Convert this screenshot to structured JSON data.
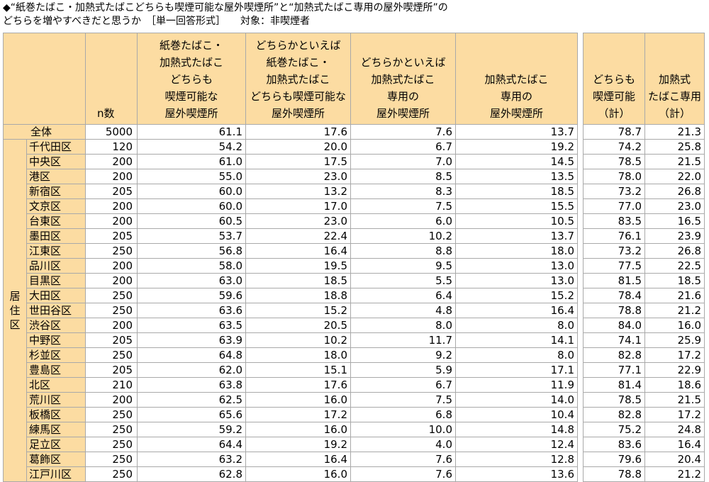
{
  "title": {
    "line1": "◆“紙巻たばこ・加熱式たばこどちらも喫煙可能な屋外喫煙所”と“加熱式たばこ専用の屋外喫煙所”の",
    "line2": "どちらを増やすべきだと思うか　［単一回答形式］　　対象：非喫煙者"
  },
  "headers": {
    "n": "n数",
    "col1": [
      "紙巻たばこ・",
      "加熱式たばこ",
      "どちらも",
      "喫煙可能な",
      "屋外喫煙所"
    ],
    "col2": [
      "どちらかといえば",
      "紙巻たばこ・",
      "加熱式たばこ",
      "どちらも喫煙可能な",
      "屋外喫煙所"
    ],
    "col3": [
      "どちらかといえば",
      "加熱式たばこ",
      "専用の",
      "屋外喫煙所"
    ],
    "col4": [
      "加熱式たばこ",
      "専用の",
      "屋外喫煙所"
    ],
    "sub1": [
      "どちらも",
      "喫煙可能",
      "（計）"
    ],
    "sub2": [
      "加熱式",
      "たばこ専用",
      "（計）"
    ]
  },
  "side_label": [
    "居",
    "住",
    "区"
  ],
  "total": {
    "label": "全体",
    "n": "5000",
    "v": [
      "61.1",
      "17.6",
      "7.6",
      "13.7"
    ],
    "s": [
      "78.7",
      "21.3"
    ]
  },
  "rows": [
    {
      "label": "千代田区",
      "n": "120",
      "v": [
        "54.2",
        "20.0",
        "6.7",
        "19.2"
      ],
      "s": [
        "74.2",
        "25.8"
      ]
    },
    {
      "label": "中央区",
      "n": "200",
      "v": [
        "61.0",
        "17.5",
        "7.0",
        "14.5"
      ],
      "s": [
        "78.5",
        "21.5"
      ]
    },
    {
      "label": "港区",
      "n": "200",
      "v": [
        "55.0",
        "23.0",
        "8.5",
        "13.5"
      ],
      "s": [
        "78.0",
        "22.0"
      ]
    },
    {
      "label": "新宿区",
      "n": "205",
      "v": [
        "60.0",
        "13.2",
        "8.3",
        "18.5"
      ],
      "s": [
        "73.2",
        "26.8"
      ]
    },
    {
      "label": "文京区",
      "n": "200",
      "v": [
        "60.0",
        "17.0",
        "7.5",
        "15.5"
      ],
      "s": [
        "77.0",
        "23.0"
      ]
    },
    {
      "label": "台東区",
      "n": "200",
      "v": [
        "60.5",
        "23.0",
        "6.0",
        "10.5"
      ],
      "s": [
        "83.5",
        "16.5"
      ]
    },
    {
      "label": "墨田区",
      "n": "205",
      "v": [
        "53.7",
        "22.4",
        "10.2",
        "13.7"
      ],
      "s": [
        "76.1",
        "23.9"
      ]
    },
    {
      "label": "江東区",
      "n": "250",
      "v": [
        "56.8",
        "16.4",
        "8.8",
        "18.0"
      ],
      "s": [
        "73.2",
        "26.8"
      ]
    },
    {
      "label": "品川区",
      "n": "200",
      "v": [
        "58.0",
        "19.5",
        "9.5",
        "13.0"
      ],
      "s": [
        "77.5",
        "22.5"
      ]
    },
    {
      "label": "目黒区",
      "n": "200",
      "v": [
        "63.0",
        "18.5",
        "5.5",
        "13.0"
      ],
      "s": [
        "81.5",
        "18.5"
      ]
    },
    {
      "label": "大田区",
      "n": "250",
      "v": [
        "59.6",
        "18.8",
        "6.4",
        "15.2"
      ],
      "s": [
        "78.4",
        "21.6"
      ]
    },
    {
      "label": "世田谷区",
      "n": "250",
      "v": [
        "63.6",
        "15.2",
        "4.8",
        "16.4"
      ],
      "s": [
        "78.8",
        "21.2"
      ]
    },
    {
      "label": "渋谷区",
      "n": "200",
      "v": [
        "63.5",
        "20.5",
        "8.0",
        "8.0"
      ],
      "s": [
        "84.0",
        "16.0"
      ]
    },
    {
      "label": "中野区",
      "n": "205",
      "v": [
        "63.9",
        "10.2",
        "11.7",
        "14.1"
      ],
      "s": [
        "74.1",
        "25.9"
      ]
    },
    {
      "label": "杉並区",
      "n": "250",
      "v": [
        "64.8",
        "18.0",
        "9.2",
        "8.0"
      ],
      "s": [
        "82.8",
        "17.2"
      ]
    },
    {
      "label": "豊島区",
      "n": "205",
      "v": [
        "62.0",
        "15.1",
        "5.9",
        "17.1"
      ],
      "s": [
        "77.1",
        "22.9"
      ]
    },
    {
      "label": "北区",
      "n": "210",
      "v": [
        "63.8",
        "17.6",
        "6.7",
        "11.9"
      ],
      "s": [
        "81.4",
        "18.6"
      ]
    },
    {
      "label": "荒川区",
      "n": "200",
      "v": [
        "62.5",
        "16.0",
        "7.5",
        "14.0"
      ],
      "s": [
        "78.5",
        "21.5"
      ]
    },
    {
      "label": "板橋区",
      "n": "250",
      "v": [
        "65.6",
        "17.2",
        "6.8",
        "10.4"
      ],
      "s": [
        "82.8",
        "17.2"
      ]
    },
    {
      "label": "練馬区",
      "n": "250",
      "v": [
        "59.2",
        "16.0",
        "10.0",
        "14.8"
      ],
      "s": [
        "75.2",
        "24.8"
      ]
    },
    {
      "label": "足立区",
      "n": "250",
      "v": [
        "64.4",
        "19.2",
        "4.0",
        "12.4"
      ],
      "s": [
        "83.6",
        "16.4"
      ]
    },
    {
      "label": "葛飾区",
      "n": "250",
      "v": [
        "63.2",
        "16.4",
        "7.6",
        "12.8"
      ],
      "s": [
        "79.6",
        "20.4"
      ]
    },
    {
      "label": "江戸川区",
      "n": "250",
      "v": [
        "62.8",
        "16.0",
        "7.6",
        "13.6"
      ],
      "s": [
        "78.8",
        "21.2"
      ]
    }
  ]
}
